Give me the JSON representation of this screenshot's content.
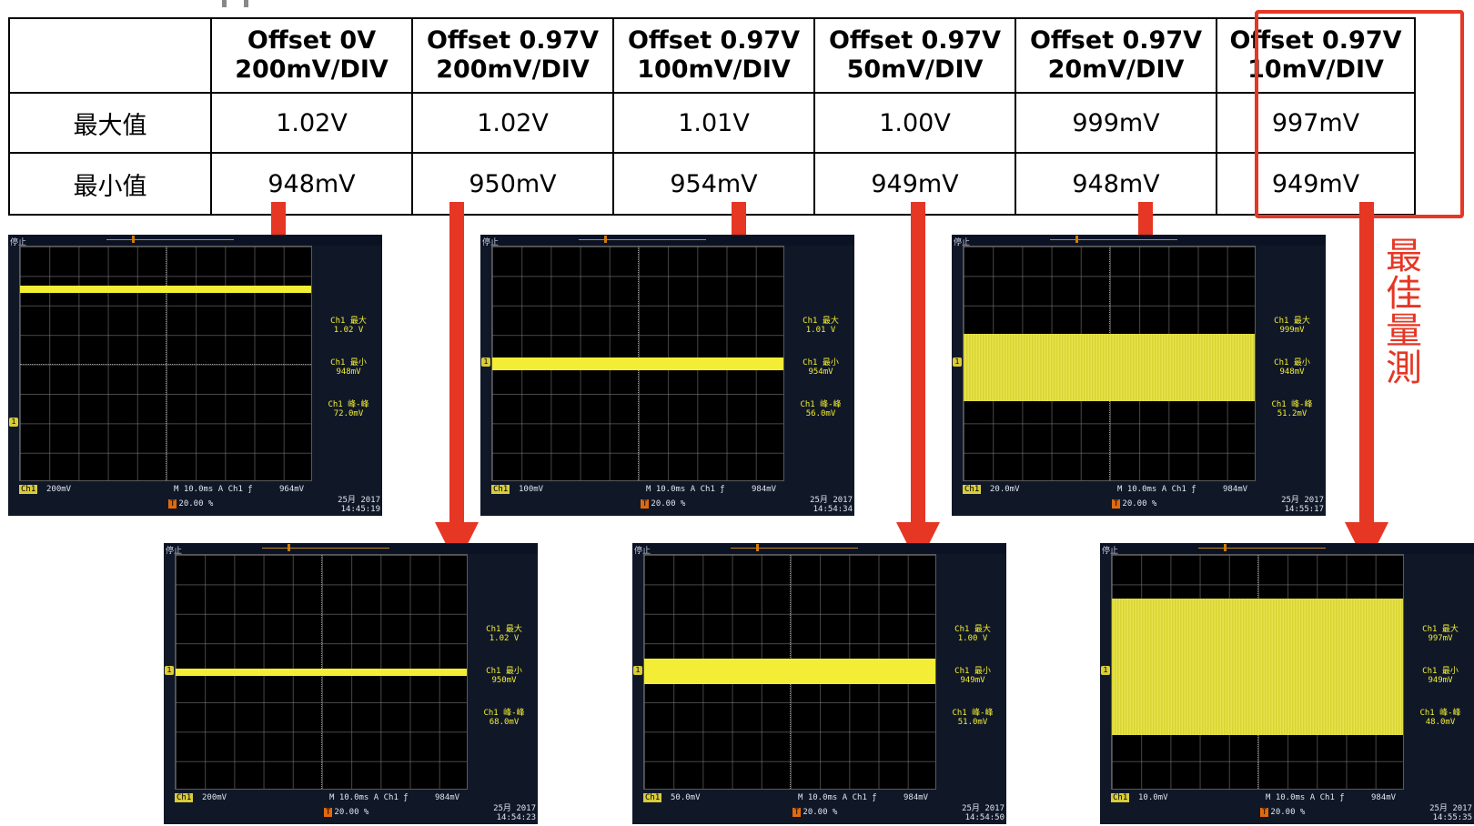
{
  "table": {
    "headers": [
      [
        "Offset 0V",
        "200mV/DIV"
      ],
      [
        "Offset 0.97V",
        "200mV/DIV"
      ],
      [
        "Offset 0.97V",
        "100mV/DIV"
      ],
      [
        "Offset 0.97V",
        "50mV/DIV"
      ],
      [
        "Offset 0.97V",
        "20mV/DIV"
      ],
      [
        "Offset 0.97V",
        "10mV/DIV"
      ]
    ],
    "rows": [
      {
        "label": "最大值",
        "values": [
          "1.02V",
          "1.02V",
          "1.01V",
          "1.00V",
          "999mV",
          "997mV"
        ]
      },
      {
        "label": "最小值",
        "values": [
          "948mV",
          "950mV",
          "954mV",
          "949mV",
          "948mV",
          "949mV"
        ]
      }
    ]
  },
  "best_label": "最佳量測",
  "colors": {
    "accent": "#e63624",
    "trace": "#f3ee35"
  },
  "scope_common": {
    "status": "停止",
    "max_label": "Ch1 最大",
    "min_label": "Ch1 最小",
    "pp_label": "Ch1 峰-峰",
    "ch_tag": "Ch1",
    "timebase": "M 10.0ms  A  Ch1  ƒ",
    "trigger_pos": "20.00 %",
    "date_line": "25月 2017"
  },
  "scopes": [
    {
      "vdiv": "200mV",
      "trig": "964mV",
      "max": "1.02 V",
      "min": "948mV",
      "pp": "72.0mV",
      "time": "14:45:19"
    },
    {
      "vdiv": "200mV",
      "trig": "984mV",
      "max": "1.02 V",
      "min": "950mV",
      "pp": "68.0mV",
      "time": "14:54:23"
    },
    {
      "vdiv": "100mV",
      "trig": "984mV",
      "max": "1.01 V",
      "min": "954mV",
      "pp": "56.0mV",
      "time": "14:54:34"
    },
    {
      "vdiv": "50.0mV",
      "trig": "984mV",
      "max": "1.00 V",
      "min": "949mV",
      "pp": "51.0mV",
      "time": "14:54:50"
    },
    {
      "vdiv": "20.0mV",
      "trig": "984mV",
      "max": "999mV",
      "min": "948mV",
      "pp": "51.2mV",
      "time": "14:55:17"
    },
    {
      "vdiv": "10.0mV",
      "trig": "984mV",
      "max": "997mV",
      "min": "949mV",
      "pp": "48.0mV",
      "time": "14:55:35"
    }
  ]
}
